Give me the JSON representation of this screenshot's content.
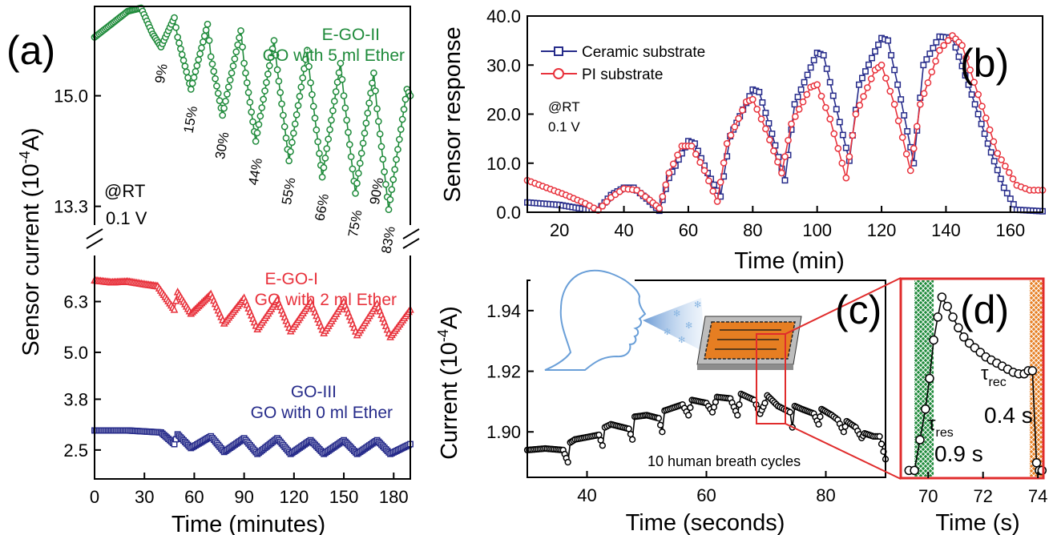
{
  "colors": {
    "green": "#1e8a3a",
    "red": "#e8323c",
    "navy": "#262b8a",
    "orange": "#e67e22",
    "box": "#e02c2c",
    "face": "#6a9fd8"
  },
  "chart_data": [
    {
      "id": "a",
      "type": "line",
      "panel_label": "(a)",
      "xlabel": "Time (minutes)",
      "ylabel": "Sensor current (10",
      "ylabel_sup": "-4",
      "ylabel_end": "A)",
      "xlim": [
        0,
        190
      ],
      "x_ticks": [
        "0",
        "30",
        "60",
        "90",
        "120",
        "150",
        "180"
      ],
      "y_ticks": [
        "15.0",
        "13.3",
        "6.3",
        "5.0",
        "3.8",
        "2.5"
      ],
      "conditions": [
        "@RT",
        "0.1 V"
      ],
      "series": [
        {
          "name": "E-GO-II",
          "name2": "GO with 5 ml Ether",
          "marker": "circle",
          "color": "green",
          "cycle_labels": [
            "9%",
            "15%",
            "30%",
            "44%",
            "55%",
            "66%",
            "75%",
            "83%",
            "90%"
          ],
          "upper_axis": [
            13.0,
            16.3
          ],
          "points": [
            [
              0,
              15.9
            ],
            [
              10,
              16.1
            ],
            [
              20,
              16.3
            ],
            [
              28,
              16.35
            ],
            [
              35,
              15.95
            ],
            [
              40,
              15.75
            ],
            [
              48,
              16.2
            ],
            [
              50,
              15.9
            ],
            [
              58,
              15.1
            ],
            [
              68,
              16.1
            ],
            [
              70,
              15.6
            ],
            [
              77,
              14.7
            ],
            [
              88,
              16.0
            ],
            [
              90,
              15.5
            ],
            [
              97,
              14.3
            ],
            [
              108,
              15.85
            ],
            [
              110,
              15.4
            ],
            [
              117,
              14.0
            ],
            [
              128,
              15.7
            ],
            [
              130,
              15.2
            ],
            [
              137,
              13.75
            ],
            [
              148,
              15.5
            ],
            [
              150,
              15.0
            ],
            [
              157,
              13.5
            ],
            [
              168,
              15.35
            ],
            [
              170,
              14.8
            ],
            [
              177,
              13.25
            ],
            [
              188,
              15.1
            ],
            [
              190,
              15.0
            ]
          ]
        },
        {
          "name": "E-GO-I",
          "name2": "GO with 2 ml Ether",
          "marker": "triangle",
          "color": "red",
          "points": [
            [
              0,
              6.85
            ],
            [
              10,
              6.8
            ],
            [
              20,
              6.82
            ],
            [
              30,
              6.75
            ],
            [
              38,
              6.7
            ],
            [
              48,
              6.1
            ],
            [
              50,
              6.55
            ],
            [
              58,
              6.0
            ],
            [
              70,
              6.5
            ],
            [
              78,
              5.75
            ],
            [
              90,
              6.4
            ],
            [
              98,
              5.6
            ],
            [
              110,
              6.35
            ],
            [
              118,
              5.55
            ],
            [
              130,
              6.3
            ],
            [
              138,
              5.5
            ],
            [
              150,
              6.3
            ],
            [
              158,
              5.45
            ],
            [
              170,
              6.25
            ],
            [
              178,
              5.4
            ],
            [
              190,
              6.1
            ]
          ]
        },
        {
          "name": "GO-III",
          "name2": "GO with 0 ml Ether",
          "marker": "square",
          "color": "navy",
          "points": [
            [
              0,
              3.0
            ],
            [
              20,
              3.0
            ],
            [
              40,
              2.95
            ],
            [
              48,
              2.65
            ],
            [
              50,
              2.9
            ],
            [
              58,
              2.55
            ],
            [
              70,
              2.85
            ],
            [
              78,
              2.45
            ],
            [
              90,
              2.8
            ],
            [
              98,
              2.4
            ],
            [
              110,
              2.8
            ],
            [
              118,
              2.4
            ],
            [
              130,
              2.75
            ],
            [
              138,
              2.4
            ],
            [
              150,
              2.75
            ],
            [
              158,
              2.4
            ],
            [
              170,
              2.75
            ],
            [
              178,
              2.4
            ],
            [
              190,
              2.65
            ]
          ]
        }
      ]
    },
    {
      "id": "b",
      "type": "line",
      "panel_label": "(b)",
      "xlabel": "Time (min)",
      "ylabel": "Sensor response",
      "xlim": [
        10,
        170
      ],
      "ylim": [
        0,
        40
      ],
      "x_ticks": [
        20,
        40,
        60,
        80,
        100,
        120,
        140,
        160
      ],
      "y_ticks": [
        "0.0",
        "10.0",
        "20.0",
        "30.0",
        "40.0"
      ],
      "conditions": [
        "@RT",
        "0.1 V"
      ],
      "legend": "top-left",
      "series": [
        {
          "name": "Ceramic substrate",
          "marker": "square",
          "color": "navy",
          "points": [
            [
              10,
              2.0
            ],
            [
              20,
              1.5
            ],
            [
              28,
              0.6
            ],
            [
              32,
              0.5
            ],
            [
              36,
              3.5
            ],
            [
              40,
              5.0
            ],
            [
              43,
              5.0
            ],
            [
              47,
              2.8
            ],
            [
              51,
              0.3
            ],
            [
              54,
              7.0
            ],
            [
              60,
              14.5
            ],
            [
              62,
              14.0
            ],
            [
              66,
              8.0
            ],
            [
              70,
              3.2
            ],
            [
              73,
              15.5
            ],
            [
              80,
              25.0
            ],
            [
              82,
              24.5
            ],
            [
              86,
              16.0
            ],
            [
              90,
              6.5
            ],
            [
              93,
              22.0
            ],
            [
              100,
              32.5
            ],
            [
              102,
              32.0
            ],
            [
              106,
              21.0
            ],
            [
              110,
              10.5
            ],
            [
              113,
              26.0
            ],
            [
              120,
              35.5
            ],
            [
              122,
              35.0
            ],
            [
              126,
              23.0
            ],
            [
              130,
              10.0
            ],
            [
              133,
              30.0
            ],
            [
              138,
              35.8
            ],
            [
              142,
              35.5
            ],
            [
              147,
              26.0
            ],
            [
              153,
              14.0
            ],
            [
              158,
              5.0
            ],
            [
              162,
              0.5
            ],
            [
              170,
              0.2
            ]
          ]
        },
        {
          "name": "PI substrate",
          "marker": "circle",
          "color": "red",
          "points": [
            [
              10,
              6.5
            ],
            [
              16,
              5.0
            ],
            [
              22,
              3.5
            ],
            [
              28,
              1.8
            ],
            [
              32,
              0.4
            ],
            [
              36,
              3.0
            ],
            [
              40,
              4.8
            ],
            [
              44,
              4.5
            ],
            [
              48,
              2.5
            ],
            [
              51,
              0.8
            ],
            [
              54,
              8.0
            ],
            [
              58,
              13.5
            ],
            [
              61,
              13.5
            ],
            [
              65,
              8.5
            ],
            [
              69,
              2.2
            ],
            [
              72,
              14.0
            ],
            [
              78,
              22.5
            ],
            [
              80,
              23.0
            ],
            [
              84,
              17.0
            ],
            [
              89,
              8.0
            ],
            [
              92,
              18.0
            ],
            [
              98,
              25.5
            ],
            [
              100,
              26.0
            ],
            [
              104,
              19.0
            ],
            [
              109,
              7.0
            ],
            [
              112,
              20.0
            ],
            [
              118,
              29.0
            ],
            [
              120,
              30.0
            ],
            [
              124,
              22.0
            ],
            [
              129,
              8.5
            ],
            [
              132,
              22.0
            ],
            [
              138,
              33.0
            ],
            [
              142,
              36.0
            ],
            [
              145,
              34.0
            ],
            [
              150,
              24.0
            ],
            [
              156,
              12.0
            ],
            [
              162,
              5.5
            ],
            [
              166,
              4.5
            ],
            [
              170,
              4.5
            ]
          ]
        }
      ]
    },
    {
      "id": "c",
      "type": "line",
      "panel_label": "(c)",
      "xlabel": "Time (seconds)",
      "ylabel": "Current (10",
      "ylabel_sup": "-4",
      "ylabel_end": "A)",
      "xlim": [
        30,
        90
      ],
      "ylim": [
        1.885,
        1.95
      ],
      "x_ticks": [
        40,
        60,
        80
      ],
      "y_ticks": [
        "1.90",
        "1.92",
        "1.94"
      ],
      "annotation": "10 human breath cycles",
      "series": [
        {
          "name": "",
          "marker": "circle",
          "color": "#000000",
          "points": [
            [
              30,
              1.894
            ],
            [
              33,
              1.8945
            ],
            [
              36,
              1.894
            ],
            [
              36.8,
              1.89
            ],
            [
              37.2,
              1.8965
            ],
            [
              38,
              1.8975
            ],
            [
              42,
              1.899
            ],
            [
              42.6,
              1.8955
            ],
            [
              43,
              1.9015
            ],
            [
              44,
              1.9025
            ],
            [
              47,
              1.901
            ],
            [
              47.6,
              1.8975
            ],
            [
              48,
              1.905
            ],
            [
              50,
              1.9055
            ],
            [
              52,
              1.9045
            ],
            [
              52.6,
              1.9
            ],
            [
              53,
              1.907
            ],
            [
              56,
              1.909
            ],
            [
              57,
              1.9055
            ],
            [
              57.6,
              1.9105
            ],
            [
              60,
              1.9095
            ],
            [
              61,
              1.9065
            ],
            [
              61.8,
              1.9115
            ],
            [
              64,
              1.911
            ],
            [
              65.2,
              1.9055
            ],
            [
              65.8,
              1.9125
            ],
            [
              68,
              1.9105
            ],
            [
              69,
              1.906
            ],
            [
              69.8,
              1.9095
            ],
            [
              70.2,
              1.912
            ],
            [
              72,
              1.9085
            ],
            [
              73,
              1.9075
            ],
            [
              74,
              1.9065
            ],
            [
              74.4,
              1.9015
            ],
            [
              74.8,
              1.9085
            ],
            [
              76,
              1.9075
            ],
            [
              78,
              1.906
            ],
            [
              78.8,
              1.9025
            ],
            [
              79.3,
              1.9075
            ],
            [
              81,
              1.9055
            ],
            [
              82,
              1.904
            ],
            [
              83,
              1.9
            ],
            [
              83.5,
              1.9035
            ],
            [
              85,
              1.9015
            ],
            [
              86,
              1.898
            ],
            [
              86.5,
              1.8995
            ],
            [
              88,
              1.8985
            ],
            [
              89,
              1.8985
            ],
            [
              90,
              1.891
            ]
          ]
        }
      ]
    },
    {
      "id": "d",
      "type": "line",
      "panel_label": "(d)",
      "xlabel": "Time (s)",
      "xlim": [
        69,
        74.2
      ],
      "ylim": [
        1.9,
        1.913
      ],
      "x_ticks": [
        70,
        72,
        74
      ],
      "tau_res_label": "τ",
      "tau_res_sub": "res",
      "tau_res_value": "0.9 s",
      "tau_rec_label": "τ",
      "tau_rec_sub": "rec",
      "tau_rec_value": "0.4 s",
      "response_band": [
        69.5,
        70.2
      ],
      "recovery_band": [
        73.7,
        74.2
      ],
      "series": [
        {
          "name": "",
          "marker": "circle",
          "color": "#000000",
          "points": [
            [
              69.3,
              1.9005
            ],
            [
              69.5,
              1.9005
            ],
            [
              69.7,
              1.9025
            ],
            [
              69.9,
              1.9045
            ],
            [
              70.05,
              1.9065
            ],
            [
              70.2,
              1.909
            ],
            [
              70.35,
              1.9105
            ],
            [
              70.5,
              1.9118
            ],
            [
              70.7,
              1.9112
            ],
            [
              70.9,
              1.9105
            ],
            [
              71.1,
              1.9098
            ],
            [
              71.3,
              1.9092
            ],
            [
              71.5,
              1.9088
            ],
            [
              71.7,
              1.9085
            ],
            [
              71.9,
              1.9082
            ],
            [
              72.1,
              1.9079
            ],
            [
              72.3,
              1.9077
            ],
            [
              72.5,
              1.9075
            ],
            [
              72.7,
              1.9073
            ],
            [
              72.9,
              1.9071
            ],
            [
              73.1,
              1.9069
            ],
            [
              73.3,
              1.9068
            ],
            [
              73.5,
              1.9068
            ],
            [
              73.65,
              1.907
            ],
            [
              73.8,
              1.907
            ],
            [
              73.95,
              1.901
            ],
            [
              74.05,
              1.9005
            ],
            [
              74.15,
              1.9005
            ]
          ]
        }
      ]
    }
  ]
}
